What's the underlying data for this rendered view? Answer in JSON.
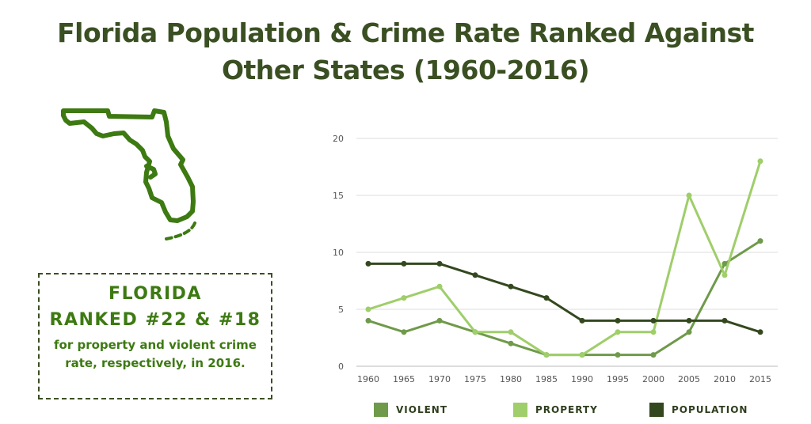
{
  "title": {
    "line1": "Florida Population & Crime Rate Ranked Against",
    "line2": "Other States (1960-2016)"
  },
  "callout": {
    "line1": "FLORIDA",
    "line2": "RANKED #22 & #18",
    "text": "for property and violent crime rate, respectively, in 2016."
  },
  "colors": {
    "violent": "#6f9a4a",
    "property": "#9fce6a",
    "population": "#34481f",
    "map": "#3d7a12",
    "grid": "#dddddd",
    "axis_text": "#555555"
  },
  "legend": [
    {
      "label": "VIOLENT",
      "series": "violent"
    },
    {
      "label": "PROPERTY",
      "series": "property"
    },
    {
      "label": "POPULATION",
      "series": "population"
    }
  ],
  "chart_data": {
    "type": "line",
    "title": "Florida Population & Crime Rate Ranked Against Other States (1960-2016)",
    "xlabel": "",
    "ylabel": "",
    "x": [
      "1960",
      "1965",
      "1970",
      "1975",
      "1980",
      "1985",
      "1990",
      "1995",
      "2000",
      "2005",
      "2010",
      "2015"
    ],
    "ylim": [
      0,
      20
    ],
    "yticks": [
      0,
      5,
      10,
      15,
      20
    ],
    "grid": true,
    "legend_position": "bottom",
    "series": [
      {
        "name": "VIOLENT",
        "key": "violent",
        "values": [
          4,
          3,
          4,
          3,
          2,
          1,
          1,
          1,
          1,
          3,
          9,
          11
        ]
      },
      {
        "name": "PROPERTY",
        "key": "property",
        "values": [
          5,
          6,
          7,
          3,
          3,
          1,
          1,
          3,
          3,
          15,
          8,
          18
        ]
      },
      {
        "name": "POPULATION",
        "key": "population",
        "values": [
          9,
          9,
          9,
          8,
          7,
          6,
          4,
          4,
          4,
          4,
          4,
          3
        ]
      }
    ]
  }
}
